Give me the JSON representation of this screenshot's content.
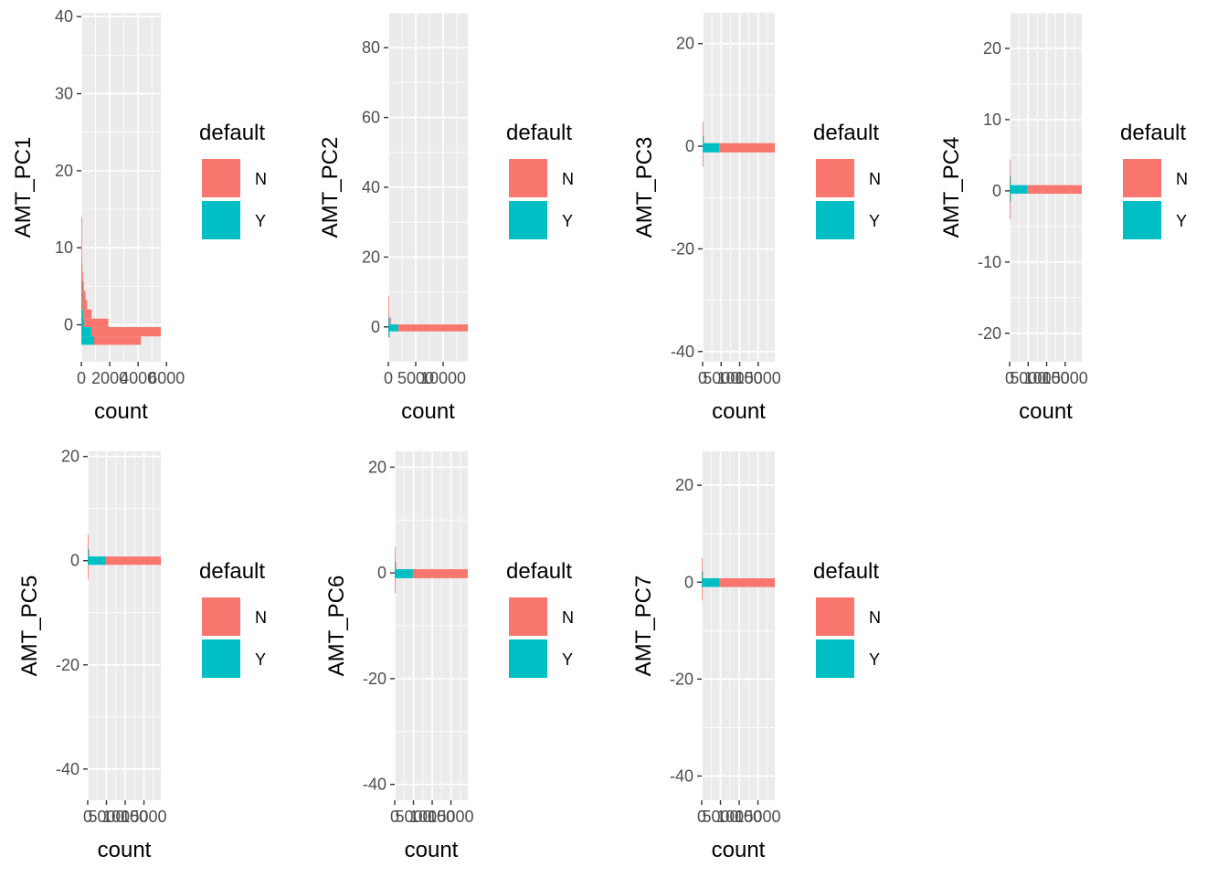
{
  "colors": {
    "N": "#F8766D",
    "Y": "#00BFC4",
    "panel": "#EBEBEB",
    "grid": "#FFFFFF",
    "tick": "#333333"
  },
  "chart_data": [
    {
      "type": "bar",
      "orientation": "horizontal-stacked-histogram",
      "xlabel": "count",
      "ylabel": "AMT_PC1",
      "xlim": [
        0,
        5600
      ],
      "ylim": [
        -4.8,
        40.5
      ],
      "xticks": [
        0,
        2000,
        4000,
        6000
      ],
      "xtick_labels": [
        "0",
        "2000",
        "4000",
        "6000"
      ],
      "yticks": [
        0,
        10,
        20,
        30,
        40
      ],
      "ytick_labels": [
        "0",
        "10",
        "20",
        "30",
        "40"
      ],
      "legend": {
        "title": "default",
        "labels": [
          "N",
          "Y"
        ],
        "position": "right"
      },
      "series": [
        {
          "name": "N",
          "bins": [
            {
              "y0": -2.6,
              "y1": -1.5,
              "value": 3300
            },
            {
              "y0": -1.5,
              "y1": -0.3,
              "value": 5400
            },
            {
              "y0": -0.3,
              "y1": 0.8,
              "value": 1700
            },
            {
              "y0": 0.8,
              "y1": 2.0,
              "value": 600
            },
            {
              "y0": 2.0,
              "y1": 3.2,
              "value": 350
            },
            {
              "y0": 3.2,
              "y1": 4.4,
              "value": 260
            },
            {
              "y0": 4.4,
              "y1": 5.6,
              "value": 170
            },
            {
              "y0": 5.6,
              "y1": 6.8,
              "value": 120
            },
            {
              "y0": 6.8,
              "y1": 8.0,
              "value": 80
            },
            {
              "y0": 8.0,
              "y1": 9.2,
              "value": 50
            },
            {
              "y0": 9.2,
              "y1": 10.4,
              "value": 35
            },
            {
              "y0": 10.4,
              "y1": 11.6,
              "value": 20
            },
            {
              "y0": 11.6,
              "y1": 12.8,
              "value": 12
            },
            {
              "y0": 12.8,
              "y1": 14.0,
              "value": 8
            }
          ]
        },
        {
          "name": "Y",
          "bins": [
            {
              "y0": -2.6,
              "y1": -1.5,
              "value": 900
            },
            {
              "y0": -1.5,
              "y1": -0.3,
              "value": 700
            },
            {
              "y0": -0.3,
              "y1": 0.8,
              "value": 200
            },
            {
              "y0": 0.8,
              "y1": 2.0,
              "value": 120
            },
            {
              "y0": 2.0,
              "y1": 3.2,
              "value": 60
            },
            {
              "y0": 3.2,
              "y1": 4.4,
              "value": 30
            },
            {
              "y0": 4.4,
              "y1": 5.6,
              "value": 10
            }
          ]
        }
      ]
    },
    {
      "type": "bar",
      "orientation": "horizontal-stacked-histogram",
      "xlabel": "count",
      "ylabel": "AMT_PC2",
      "xlim": [
        0,
        14500
      ],
      "ylim": [
        -10,
        90
      ],
      "xticks": [
        0,
        5000,
        10000
      ],
      "xtick_labels": [
        "0",
        "5000",
        "10000"
      ],
      "yticks": [
        0,
        20,
        40,
        60,
        80
      ],
      "ytick_labels": [
        "0",
        "20",
        "40",
        "60",
        "80"
      ],
      "legend": {
        "title": "default",
        "labels": [
          "N",
          "Y"
        ],
        "position": "right"
      },
      "series": [
        {
          "name": "N",
          "bins": [
            {
              "y0": -3.0,
              "y1": -1.3,
              "value": 200
            },
            {
              "y0": -1.3,
              "y1": 0.7,
              "value": 14400
            },
            {
              "y0": 0.7,
              "y1": 2.7,
              "value": 400
            },
            {
              "y0": 2.7,
              "y1": 4.7,
              "value": 80
            },
            {
              "y0": 4.7,
              "y1": 6.7,
              "value": 25
            },
            {
              "y0": 6.7,
              "y1": 8.7,
              "value": 10
            }
          ]
        },
        {
          "name": "Y",
          "bins": [
            {
              "y0": -3.0,
              "y1": -1.3,
              "value": 60
            },
            {
              "y0": -1.3,
              "y1": 0.7,
              "value": 1800
            },
            {
              "y0": 0.7,
              "y1": 2.7,
              "value": 60
            }
          ]
        }
      ]
    },
    {
      "type": "bar",
      "orientation": "horizontal-stacked-histogram",
      "xlabel": "count",
      "ylabel": "AMT_PC3",
      "xlim": [
        0,
        19500
      ],
      "ylim": [
        -42,
        26
      ],
      "xticks": [
        0,
        5000,
        10000,
        15000
      ],
      "xtick_labels": [
        "0",
        "5000",
        "10000",
        "15000"
      ],
      "yticks": [
        -40,
        -20,
        0,
        20
      ],
      "ytick_labels": [
        "-40",
        "-20",
        "0",
        "20"
      ],
      "legend": {
        "title": "default",
        "labels": [
          "N",
          "Y"
        ],
        "position": "right"
      },
      "series": [
        {
          "name": "N",
          "bins": [
            {
              "y0": -4.0,
              "y1": -2.6,
              "value": 40
            },
            {
              "y0": -2.6,
              "y1": -1.2,
              "value": 150
            },
            {
              "y0": -1.2,
              "y1": 0.6,
              "value": 19400
            },
            {
              "y0": 0.6,
              "y1": 2.0,
              "value": 300
            },
            {
              "y0": 2.0,
              "y1": 3.4,
              "value": 80
            },
            {
              "y0": 3.4,
              "y1": 4.8,
              "value": 20
            }
          ]
        },
        {
          "name": "Y",
          "bins": [
            {
              "y0": -1.2,
              "y1": 0.6,
              "value": 4500
            },
            {
              "y0": 0.6,
              "y1": 2.0,
              "value": 40
            }
          ]
        }
      ]
    },
    {
      "type": "bar",
      "orientation": "horizontal-stacked-histogram",
      "xlabel": "count",
      "ylabel": "AMT_PC4",
      "xlim": [
        0,
        19500
      ],
      "ylim": [
        -24,
        25
      ],
      "xticks": [
        0,
        5000,
        10000,
        15000
      ],
      "xtick_labels": [
        "0",
        "5000",
        "10000",
        "15000"
      ],
      "yticks": [
        -20,
        -10,
        0,
        10,
        20
      ],
      "ytick_labels": [
        "-20",
        "-10",
        "0",
        "10",
        "20"
      ],
      "legend": {
        "title": "default",
        "labels": [
          "N",
          "Y"
        ],
        "position": "right"
      },
      "series": [
        {
          "name": "N",
          "bins": [
            {
              "y0": -4.0,
              "y1": -2.8,
              "value": 30
            },
            {
              "y0": -2.8,
              "y1": -1.6,
              "value": 120
            },
            {
              "y0": -1.6,
              "y1": -0.4,
              "value": 300
            },
            {
              "y0": -0.4,
              "y1": 0.8,
              "value": 19400
            },
            {
              "y0": 0.8,
              "y1": 2.0,
              "value": 300
            },
            {
              "y0": 2.0,
              "y1": 3.2,
              "value": 100
            },
            {
              "y0": 3.2,
              "y1": 4.4,
              "value": 25
            }
          ]
        },
        {
          "name": "Y",
          "bins": [
            {
              "y0": -1.6,
              "y1": -0.4,
              "value": 50
            },
            {
              "y0": -0.4,
              "y1": 0.8,
              "value": 4700
            },
            {
              "y0": 0.8,
              "y1": 2.0,
              "value": 50
            }
          ]
        }
      ]
    },
    {
      "type": "bar",
      "orientation": "horizontal-stacked-histogram",
      "xlabel": "count",
      "ylabel": "AMT_PC5",
      "xlim": [
        0,
        19500
      ],
      "ylim": [
        -46,
        21
      ],
      "xticks": [
        0,
        5000,
        10000,
        15000
      ],
      "xtick_labels": [
        "0",
        "5000",
        "10000",
        "15000"
      ],
      "yticks": [
        -40,
        -20,
        0,
        20
      ],
      "ytick_labels": [
        "-40",
        "-20",
        "0",
        "20"
      ],
      "legend": {
        "title": "default",
        "labels": [
          "N",
          "Y"
        ],
        "position": "right"
      },
      "series": [
        {
          "name": "N",
          "bins": [
            {
              "y0": -3.6,
              "y1": -2.2,
              "value": 40
            },
            {
              "y0": -2.2,
              "y1": -0.8,
              "value": 200
            },
            {
              "y0": -0.8,
              "y1": 0.8,
              "value": 19400
            },
            {
              "y0": 0.8,
              "y1": 2.2,
              "value": 350
            },
            {
              "y0": 2.2,
              "y1": 3.6,
              "value": 90
            },
            {
              "y0": 3.6,
              "y1": 5.0,
              "value": 25
            }
          ]
        },
        {
          "name": "Y",
          "bins": [
            {
              "y0": -0.8,
              "y1": 0.8,
              "value": 4800
            },
            {
              "y0": 0.8,
              "y1": 2.2,
              "value": 50
            }
          ]
        }
      ]
    },
    {
      "type": "bar",
      "orientation": "horizontal-stacked-histogram",
      "xlabel": "count",
      "ylabel": "AMT_PC6",
      "xlim": [
        0,
        19500
      ],
      "ylim": [
        -43,
        23
      ],
      "xticks": [
        0,
        5000,
        10000,
        15000
      ],
      "xtick_labels": [
        "0",
        "5000",
        "10000",
        "15000"
      ],
      "yticks": [
        -40,
        -20,
        0,
        20
      ],
      "ytick_labels": [
        "-40",
        "-20",
        "0",
        "20"
      ],
      "legend": {
        "title": "default",
        "labels": [
          "N",
          "Y"
        ],
        "position": "right"
      },
      "series": [
        {
          "name": "N",
          "bins": [
            {
              "y0": -3.8,
              "y1": -2.4,
              "value": 40
            },
            {
              "y0": -2.4,
              "y1": -1.0,
              "value": 200
            },
            {
              "y0": -1.0,
              "y1": 0.7,
              "value": 19400
            },
            {
              "y0": 0.7,
              "y1": 2.1,
              "value": 330
            },
            {
              "y0": 2.1,
              "y1": 3.5,
              "value": 90
            },
            {
              "y0": 3.5,
              "y1": 4.9,
              "value": 25
            }
          ]
        },
        {
          "name": "Y",
          "bins": [
            {
              "y0": -1.0,
              "y1": 0.7,
              "value": 4800
            },
            {
              "y0": 0.7,
              "y1": 2.1,
              "value": 50
            }
          ]
        }
      ]
    },
    {
      "type": "bar",
      "orientation": "horizontal-stacked-histogram",
      "xlabel": "count",
      "ylabel": "AMT_PC7",
      "xlim": [
        0,
        19500
      ],
      "ylim": [
        -45,
        27
      ],
      "xticks": [
        0,
        5000,
        10000,
        15000
      ],
      "xtick_labels": [
        "0",
        "5000",
        "10000",
        "15000"
      ],
      "yticks": [
        -40,
        -20,
        0,
        20
      ],
      "ytick_labels": [
        "-40",
        "-20",
        "0",
        "20"
      ],
      "legend": {
        "title": "default",
        "labels": [
          "N",
          "Y"
        ],
        "position": "right"
      },
      "series": [
        {
          "name": "N",
          "bins": [
            {
              "y0": -3.8,
              "y1": -2.4,
              "value": 40
            },
            {
              "y0": -2.4,
              "y1": -1.0,
              "value": 200
            },
            {
              "y0": -1.0,
              "y1": 0.8,
              "value": 19400
            },
            {
              "y0": 0.8,
              "y1": 2.2,
              "value": 330
            },
            {
              "y0": 2.2,
              "y1": 3.6,
              "value": 90
            },
            {
              "y0": 3.6,
              "y1": 5.0,
              "value": 25
            }
          ]
        },
        {
          "name": "Y",
          "bins": [
            {
              "y0": -1.0,
              "y1": 0.8,
              "value": 4800
            },
            {
              "y0": 0.8,
              "y1": 2.2,
              "value": 50
            }
          ]
        }
      ]
    }
  ]
}
